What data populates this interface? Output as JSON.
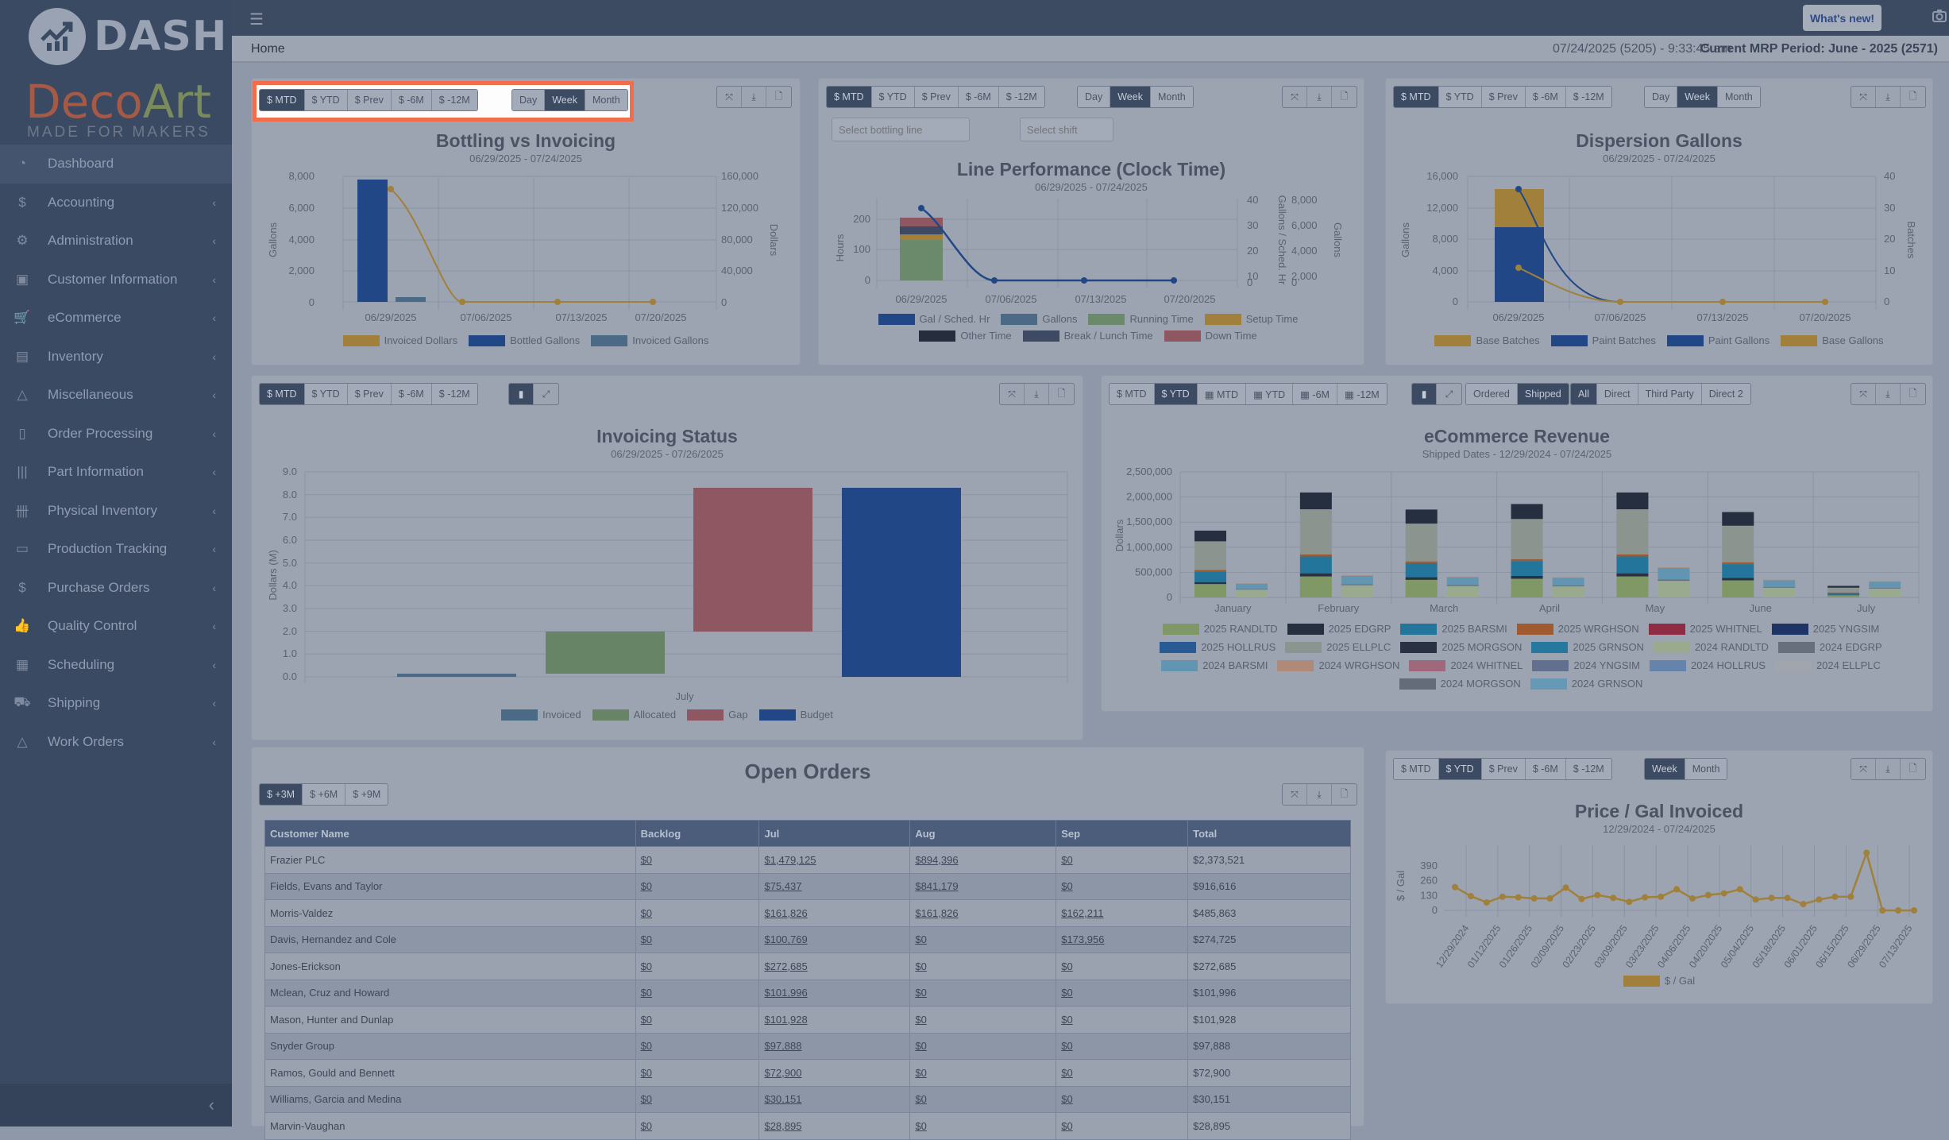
{
  "app": {
    "brand": "DASH",
    "company_a": "Deco",
    "company_b": "Art",
    "tagline": "MADE FOR MAKERS"
  },
  "topbar": {
    "whats_new": "What's new!"
  },
  "breadcrumb": {
    "home": "Home"
  },
  "status": {
    "datetime": "07/24/2025 (5205) - 9:33:45 am",
    "mrp": "Current MRP Period: June - 2025 (2571)"
  },
  "sidebar": {
    "items": [
      {
        "label": "Dashboard",
        "icon": "dashboard-icon",
        "active": true
      },
      {
        "label": "Accounting",
        "icon": "dollar-icon"
      },
      {
        "label": "Administration",
        "icon": "users-gear-icon"
      },
      {
        "label": "Customer Information",
        "icon": "contact-card-icon"
      },
      {
        "label": "eCommerce",
        "icon": "cart-icon"
      },
      {
        "label": "Inventory",
        "icon": "shelf-icon"
      },
      {
        "label": "Miscellaneous",
        "icon": "shapes-icon"
      },
      {
        "label": "Order Processing",
        "icon": "invoice-icon"
      },
      {
        "label": "Part Information",
        "icon": "barcode-icon"
      },
      {
        "label": "Physical Inventory",
        "icon": "tally-icon"
      },
      {
        "label": "Production Tracking",
        "icon": "conveyor-icon"
      },
      {
        "label": "Purchase Orders",
        "icon": "hand-dollar-icon"
      },
      {
        "label": "Quality Control",
        "icon": "thumbs-up-icon"
      },
      {
        "label": "Scheduling",
        "icon": "calendar-icon"
      },
      {
        "label": "Shipping",
        "icon": "truck-icon"
      },
      {
        "label": "Work Orders",
        "icon": "cone-icon"
      }
    ],
    "collapse": "‹"
  },
  "period_buttons": [
    "$ MTD",
    "$ YTD",
    "$ Prev",
    "$ -6M",
    "$ -12M"
  ],
  "grain_buttons": [
    "Day",
    "Week",
    "Month"
  ],
  "grain_buttons2": [
    "Week",
    "Month"
  ],
  "ecom_buttons": [
    "$ MTD",
    "$ YTD",
    "▦ MTD",
    "▦ YTD",
    "▦ -6M",
    "▦ -12M"
  ],
  "ecom_mode": [
    "Ordered",
    "Shipped"
  ],
  "ecom_channel": [
    "All",
    "Direct",
    "Third Party",
    "Direct 2"
  ],
  "open_buttons": [
    "$ +3M",
    "$ +6M",
    "$ +9M"
  ],
  "line_perf_filters": {
    "line_placeholder": "Select bottling line",
    "shift_placeholder": "Select shift"
  },
  "chart_data": [
    {
      "id": "bottling",
      "type": "bar",
      "title": "Bottling vs Invoicing",
      "subtitle": "06/29/2025 - 07/24/2025",
      "categories": [
        "06/29/2025",
        "07/06/2025",
        "07/13/2025",
        "07/20/2025"
      ],
      "ylabel": "Gallons",
      "ylim": [
        0,
        8000
      ],
      "yticks": [
        "0",
        "2,000",
        "4,000",
        "6,000",
        "8,000"
      ],
      "y2label": "Dollars",
      "y2lim": [
        0,
        160000
      ],
      "y2ticks": [
        "0",
        "40,000",
        "80,000",
        "120,000",
        "160,000"
      ],
      "series": [
        {
          "name": "Invoiced Dollars",
          "type": "line",
          "axis": "y2",
          "values": [
            142000,
            0,
            0,
            0
          ],
          "color": "#a0803a"
        },
        {
          "name": "Bottled Gallons",
          "type": "bar",
          "values": [
            7750,
            0,
            0,
            0
          ],
          "color": "#224786"
        },
        {
          "name": "Invoiced Gallons",
          "type": "bar",
          "values": [
            250,
            0,
            0,
            0
          ],
          "color": "#4a6a85"
        }
      ]
    },
    {
      "id": "line_perf",
      "type": "bar",
      "title": "Line Performance (Clock Time)",
      "subtitle": "06/29/2025 - 07/24/2025",
      "categories": [
        "06/29/2025",
        "07/06/2025",
        "07/13/2025",
        "07/20/2025"
      ],
      "ylabel": "Hours",
      "yticks": [
        "0",
        "100",
        "200"
      ],
      "y2label": "Gallons / Sched. Hr",
      "y2ticks": [
        "0",
        "10",
        "20",
        "30",
        "40"
      ],
      "y3label": "Gallons",
      "y3ticks": [
        "0",
        "2,000",
        "4,000",
        "6,000",
        "8,000"
      ],
      "series": [
        {
          "name": "Gal / Sched. Hr",
          "type": "line",
          "values": [
            37,
            0,
            0,
            0
          ],
          "color": "#224786"
        },
        {
          "name": "Gallons",
          "type": "line",
          "values": [
            7700,
            0,
            0,
            0
          ],
          "color": "#4a6a85"
        },
        {
          "name": "Running Time",
          "type": "bar",
          "values": [
            130,
            0,
            0,
            0
          ],
          "color": "#6b8a6b"
        },
        {
          "name": "Setup Time",
          "type": "bar",
          "values": [
            16,
            0,
            0,
            0
          ],
          "color": "#a0803a"
        },
        {
          "name": "Other Time",
          "type": "bar",
          "values": [
            2,
            0,
            0,
            0
          ],
          "color": "#262d3d"
        },
        {
          "name": "Break / Lunch Time",
          "type": "bar",
          "values": [
            22,
            0,
            0,
            0
          ],
          "color": "#3e4a63"
        },
        {
          "name": "Down Time",
          "type": "bar",
          "values": [
            36,
            0,
            0,
            0
          ],
          "color": "#8e5762"
        }
      ]
    },
    {
      "id": "dispersion",
      "type": "bar",
      "title": "Dispersion Gallons",
      "subtitle": "06/29/2025 - 07/24/2025",
      "categories": [
        "06/29/2025",
        "07/06/2025",
        "07/13/2025",
        "07/20/2025"
      ],
      "ylabel": "Gallons",
      "yticks": [
        "0",
        "4,000",
        "8,000",
        "12,000",
        "16,000"
      ],
      "y2label": "Batches",
      "y2ticks": [
        "0",
        "10",
        "20",
        "30",
        "40"
      ],
      "series": [
        {
          "name": "Base Batches",
          "type": "line",
          "values": [
            11,
            0,
            0,
            0
          ],
          "color": "#a0803a"
        },
        {
          "name": "Paint Batches",
          "type": "line",
          "values": [
            36,
            0,
            0,
            0
          ],
          "color": "#224786"
        },
        {
          "name": "Paint Gallons",
          "type": "bar",
          "values": [
            9500,
            0,
            0,
            0
          ],
          "color": "#224786"
        },
        {
          "name": "Base Gallons",
          "type": "bar",
          "values": [
            4800,
            0,
            0,
            0
          ],
          "color": "#a0803a"
        }
      ]
    },
    {
      "id": "invoicing_status",
      "type": "bar",
      "title": "Invoicing Status",
      "subtitle": "06/29/2025 - 07/26/2025",
      "categories": [
        "July"
      ],
      "ylabel": "Dollars (M)",
      "ylim": [
        0,
        9
      ],
      "yticks": [
        "0.0",
        "1.0",
        "2.0",
        "3.0",
        "4.0",
        "5.0",
        "6.0",
        "7.0",
        "8.0",
        "9.0"
      ],
      "series": [
        {
          "name": "Invoiced",
          "range": [
            0,
            0.15
          ],
          "color": "#4a6a85"
        },
        {
          "name": "Allocated",
          "range": [
            0.15,
            2.0
          ],
          "color": "#678467"
        },
        {
          "name": "Gap",
          "range": [
            2.0,
            8.3
          ],
          "color": "#8e5762"
        },
        {
          "name": "Budget",
          "range": [
            0,
            8.3
          ],
          "color": "#224786"
        }
      ]
    },
    {
      "id": "ecommerce",
      "type": "bar",
      "title": "eCommerce Revenue",
      "subtitle": "Shipped Dates - 12/29/2024 - 07/24/2025",
      "categories": [
        "January",
        "February",
        "March",
        "April",
        "May",
        "June",
        "July"
      ],
      "ylabel": "Dollars",
      "ylim": [
        0,
        2500000
      ],
      "yticks": [
        "0",
        "500,000",
        "1,000,000",
        "1,500,000",
        "2,000,000",
        "2,500,000"
      ],
      "totals_2025": [
        1330000,
        2090000,
        1750000,
        1860000,
        2090000,
        1700000,
        230000
      ],
      "totals_2024": [
        280000,
        440000,
        410000,
        400000,
        600000,
        350000,
        320000
      ],
      "legend": [
        {
          "name": "2025 RANDLTD",
          "color": "#7f9866"
        },
        {
          "name": "2025 EDGRP",
          "color": "#262f40"
        },
        {
          "name": "2025 BARSMI",
          "color": "#23759b"
        },
        {
          "name": "2025 WRGHSON",
          "color": "#a05a30"
        },
        {
          "name": "2025 WHITNEL",
          "color": "#8f2c44"
        },
        {
          "name": "2025 YNGSIM",
          "color": "#1f3466"
        },
        {
          "name": "2025 HOLLRUS",
          "color": "#285b94"
        },
        {
          "name": "2025 ELLPLC",
          "color": "#8b948f"
        },
        {
          "name": "2025 MORGSON",
          "color": "#293242"
        },
        {
          "name": "2025 GRNSON",
          "color": "#26789e"
        },
        {
          "name": "2024 RANDLTD",
          "color": "#9aaa8f"
        },
        {
          "name": "2024 EDGRP",
          "color": "#676f7d"
        },
        {
          "name": "2024 BARSMI",
          "color": "#6295b1"
        },
        {
          "name": "2024 WRGHSON",
          "color": "#af8a79"
        },
        {
          "name": "2024 WHITNEL",
          "color": "#a0697b"
        },
        {
          "name": "2024 YNGSIM",
          "color": "#626f8e"
        },
        {
          "name": "2024 HOLLRUS",
          "color": "#6584ab"
        },
        {
          "name": "2024 ELLPLC",
          "color": "#a1a6ad"
        },
        {
          "name": "2024 MORGSON",
          "color": "#646c79"
        },
        {
          "name": "2024 GRNSON",
          "color": "#6699b5"
        }
      ]
    },
    {
      "id": "price_gal",
      "type": "line",
      "title": "Price / Gal Invoiced",
      "subtitle": "12/29/2024 - 07/24/2025",
      "ylabel": "$ / Gal",
      "yticks": [
        "0",
        "130",
        "260",
        "390"
      ],
      "xticks": [
        "12/29/2024",
        "01/12/2025",
        "01/26/2025",
        "02/09/2025",
        "02/23/2025",
        "03/09/2025",
        "03/23/2025",
        "04/06/2025",
        "04/20/2025",
        "05/04/2025",
        "05/18/2025",
        "06/01/2025",
        "06/15/2025",
        "06/29/2025",
        "07/13/2025"
      ],
      "values": [
        205,
        125,
        70,
        120,
        115,
        105,
        105,
        200,
        100,
        135,
        110,
        75,
        115,
        120,
        185,
        105,
        135,
        150,
        185,
        95,
        110,
        110,
        55,
        95,
        120,
        120,
        505,
        0,
        0,
        0
      ],
      "series_name": "$ / Gal",
      "color": "#a0803a"
    }
  ],
  "open_orders": {
    "title": "Open Orders",
    "columns": [
      "Customer Name",
      "Backlog",
      "Jul",
      "Aug",
      "Sep",
      "Total"
    ],
    "rows": [
      [
        "Frazier PLC",
        "$0",
        "$1,479,125",
        "$894,396",
        "$0",
        "$2,373,521"
      ],
      [
        "Fields, Evans and Taylor",
        "$0",
        "$75,437",
        "$841,179",
        "$0",
        "$916,616"
      ],
      [
        "Morris-Valdez",
        "$0",
        "$161,826",
        "$161,826",
        "$162,211",
        "$485,863"
      ],
      [
        "Davis, Hernandez and Cole",
        "$0",
        "$100,769",
        "$0",
        "$173,956",
        "$274,725"
      ],
      [
        "Jones-Erickson",
        "$0",
        "$272,685",
        "$0",
        "$0",
        "$272,685"
      ],
      [
        "Mclean, Cruz and Howard",
        "$0",
        "$101,996",
        "$0",
        "$0",
        "$101,996"
      ],
      [
        "Mason, Hunter and Dunlap",
        "$0",
        "$101,928",
        "$0",
        "$0",
        "$101,928"
      ],
      [
        "Snyder Group",
        "$0",
        "$97,888",
        "$0",
        "$0",
        "$97,888"
      ],
      [
        "Ramos, Gould and Bennett",
        "$0",
        "$72,900",
        "$0",
        "$0",
        "$72,900"
      ],
      [
        "Williams, Garcia and Medina",
        "$0",
        "$30,151",
        "$0",
        "$0",
        "$30,151"
      ],
      [
        "Marvin-Vaughan",
        "$0",
        "$28,895",
        "$0",
        "$0",
        "$28,895"
      ]
    ]
  }
}
